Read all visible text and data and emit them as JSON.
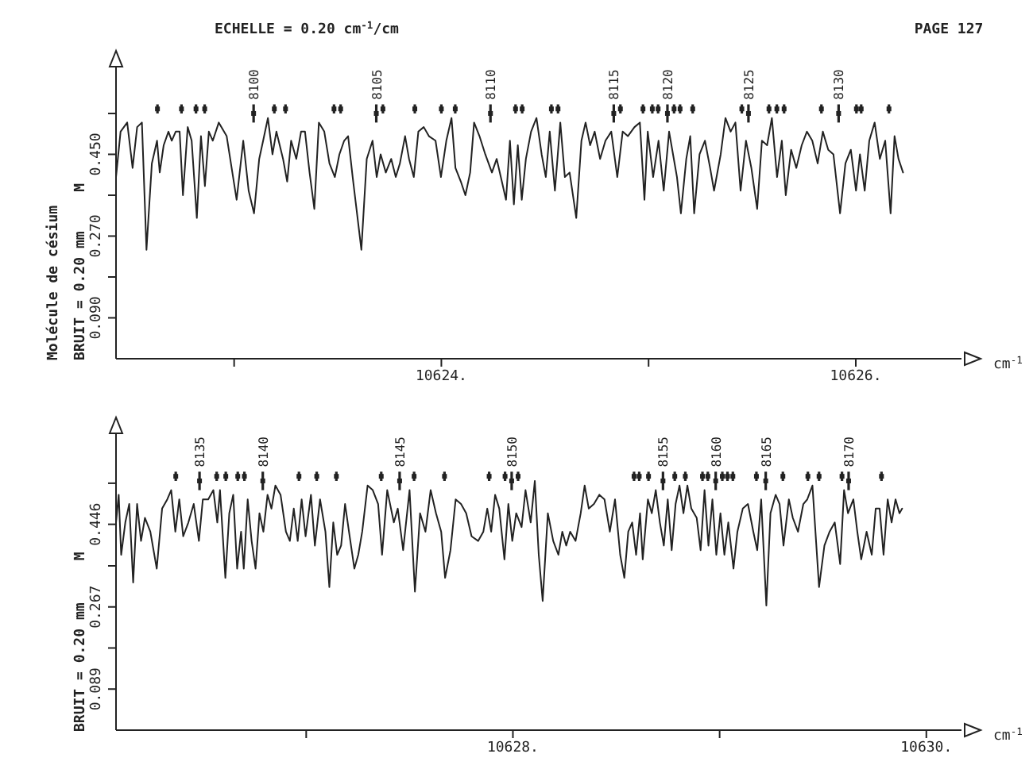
{
  "chart_data": [
    {
      "type": "line",
      "title": "ECHELLE = 0.20 cm$^{-1}$/cm",
      "xlabel": "cm$^{-1}$",
      "ylabel": "Molécule de césium",
      "xlim": [
        10622.43,
        10626.51
      ],
      "ylim": [
        0,
        0.65
      ],
      "xticks": [
        {
          "value": 10623,
          "label": null
        },
        {
          "value": 10624,
          "label": "10624."
        },
        {
          "value": 10625,
          "label": null
        },
        {
          "value": 10626,
          "label": "10626."
        }
      ],
      "yticks": [
        {
          "value": 0.09,
          "label": "0.090"
        },
        {
          "value": 0.18,
          "label": null
        },
        {
          "value": 0.27,
          "label": "0.270"
        },
        {
          "value": 0.36,
          "label": null
        },
        {
          "value": 0.45,
          "label": "0.450"
        },
        {
          "value": 0.54,
          "label": null
        }
      ],
      "marker": "none",
      "annotations": [
        "PAGE 127",
        "BRUIT = 0.20 mm",
        "M",
        {
          "text": "8100",
          "x": 10623.094,
          "y": 0.57
        },
        {
          "text": "8105",
          "x": 10623.686,
          "y": 0.57
        },
        {
          "text": "8110",
          "x": 10624.237,
          "y": 0.57
        },
        {
          "text": "8115",
          "x": 10624.832,
          "y": 0.57
        },
        {
          "text": "8120",
          "x": 10625.091,
          "y": 0.57
        },
        {
          "text": "8125",
          "x": 10625.482,
          "y": 0.57
        },
        {
          "text": "8130",
          "x": 10625.917,
          "y": 0.57
        }
      ],
      "series": [
        {
          "color": "#222222",
          "x": [
            10622.43,
            10622.452,
            10622.484,
            10622.51,
            10622.532,
            10622.555,
            10622.577,
            10622.603,
            10622.628,
            10622.641,
            10622.66,
            10622.683,
            10622.699,
            10622.718,
            10622.737,
            10622.753,
            10622.776,
            10622.795,
            10622.82,
            10622.84,
            10622.859,
            10622.878,
            10622.897,
            10622.926,
            10622.964,
            10623.012,
            10623.044,
            10623.07,
            10623.096,
            10623.121,
            10623.14,
            10623.163,
            10623.185,
            10623.204,
            10623.236,
            10623.256,
            10623.275,
            10623.3,
            10623.323,
            10623.342,
            10623.364,
            10623.387,
            10623.409,
            10623.435,
            10623.46,
            10623.486,
            10623.508,
            10623.531,
            10623.55,
            10623.572,
            10623.614,
            10623.64,
            10623.668,
            10623.688,
            10623.707,
            10623.732,
            10623.758,
            10623.78,
            10623.8,
            10623.825,
            10623.844,
            10623.867,
            10623.889,
            10623.915,
            10623.94,
            10623.972,
            10623.998,
            10624.024,
            10624.049,
            10624.068,
            10624.094,
            10624.116,
            10624.139,
            10624.158,
            10624.184,
            10624.212,
            10624.244,
            10624.267,
            10624.292,
            10624.312,
            10624.331,
            10624.35,
            10624.369,
            10624.388,
            10624.408,
            10624.433,
            10624.459,
            10624.484,
            10624.504,
            10624.523,
            10624.548,
            10624.574,
            10624.596,
            10624.619,
            10624.651,
            10624.676,
            10624.696,
            10624.718,
            10624.74,
            10624.766,
            10624.792,
            10624.82,
            10624.849,
            10624.875,
            10624.9,
            10624.932,
            10624.958,
            10624.98,
            10624.996,
            10625.022,
            10625.048,
            10625.073,
            10625.099,
            10625.118,
            10625.137,
            10625.156,
            10625.182,
            10625.201,
            10625.22,
            10625.246,
            10625.272,
            10625.297,
            10625.316,
            10625.348,
            10625.371,
            10625.396,
            10625.419,
            10625.444,
            10625.47,
            10625.496,
            10625.524,
            10625.547,
            10625.572,
            10625.595,
            10625.62,
            10625.643,
            10625.662,
            10625.688,
            10625.713,
            10625.739,
            10625.764,
            10625.79,
            10625.816,
            10625.841,
            10625.867,
            10625.892,
            10625.924,
            10625.95,
            10625.976,
            10626.001,
            10626.02,
            10626.043,
            10626.065,
            10626.091,
            10626.116,
            10626.142,
            10626.168,
            10626.187,
            10626.206,
            10626.228
          ],
          "values": [
            0.4,
            0.5,
            0.52,
            0.42,
            0.51,
            0.52,
            0.24,
            0.43,
            0.48,
            0.41,
            0.47,
            0.5,
            0.48,
            0.5,
            0.5,
            0.36,
            0.51,
            0.48,
            0.31,
            0.49,
            0.38,
            0.5,
            0.48,
            0.52,
            0.49,
            0.35,
            0.48,
            0.37,
            0.32,
            0.44,
            0.48,
            0.53,
            0.45,
            0.5,
            0.44,
            0.39,
            0.48,
            0.44,
            0.5,
            0.5,
            0.41,
            0.33,
            0.52,
            0.5,
            0.43,
            0.4,
            0.45,
            0.48,
            0.49,
            0.4,
            0.24,
            0.44,
            0.48,
            0.4,
            0.45,
            0.41,
            0.44,
            0.4,
            0.43,
            0.49,
            0.44,
            0.4,
            0.5,
            0.51,
            0.49,
            0.48,
            0.4,
            0.48,
            0.53,
            0.42,
            0.39,
            0.36,
            0.41,
            0.52,
            0.49,
            0.45,
            0.41,
            0.44,
            0.39,
            0.35,
            0.48,
            0.34,
            0.47,
            0.35,
            0.44,
            0.5,
            0.53,
            0.45,
            0.4,
            0.5,
            0.37,
            0.52,
            0.4,
            0.41,
            0.31,
            0.48,
            0.52,
            0.47,
            0.5,
            0.44,
            0.48,
            0.5,
            0.4,
            0.5,
            0.49,
            0.51,
            0.52,
            0.35,
            0.5,
            0.4,
            0.48,
            0.37,
            0.5,
            0.45,
            0.4,
            0.32,
            0.44,
            0.49,
            0.32,
            0.45,
            0.48,
            0.42,
            0.37,
            0.45,
            0.53,
            0.5,
            0.52,
            0.37,
            0.48,
            0.42,
            0.33,
            0.48,
            0.47,
            0.53,
            0.4,
            0.48,
            0.36,
            0.46,
            0.42,
            0.47,
            0.5,
            0.48,
            0.43,
            0.5,
            0.46,
            0.45,
            0.32,
            0.43,
            0.46,
            0.37,
            0.45,
            0.37,
            0.48,
            0.52,
            0.44,
            0.48,
            0.32,
            0.49,
            0.44,
            0.41
          ]
        },
        {
          "type": "scatter",
          "marker": "square",
          "color": "#222222",
          "x": [
            10622.63,
            10622.746,
            10622.816,
            10622.858,
            10623.194,
            10623.248,
            10623.482,
            10623.514,
            10623.718,
            10623.872,
            10624.0,
            10624.067,
            10624.358,
            10624.39,
            10624.531,
            10624.563,
            10624.864,
            10624.973,
            10625.018,
            10625.046,
            10625.123,
            10625.152,
            10625.213,
            10625.45,
            10625.581,
            10625.619,
            10625.654,
            10625.834,
            10626.003,
            10626.026,
            10626.16
          ],
          "values": [
            0.55,
            0.55,
            0.55,
            0.55,
            0.55,
            0.55,
            0.55,
            0.55,
            0.55,
            0.55,
            0.55,
            0.55,
            0.55,
            0.55,
            0.55,
            0.55,
            0.55,
            0.55,
            0.55,
            0.55,
            0.55,
            0.55,
            0.55,
            0.55,
            0.55,
            0.55,
            0.55,
            0.55,
            0.55,
            0.55,
            0.55
          ],
          "errors": [
            0.01,
            0.01,
            0.01,
            0.01,
            0.01,
            0.01,
            0.01,
            0.01,
            0.01,
            0.01,
            0.01,
            0.01,
            0.01,
            0.01,
            0.01,
            0.01,
            0.01,
            0.01,
            0.01,
            0.01,
            0.01,
            0.01,
            0.01,
            0.01,
            0.01,
            0.01,
            0.01,
            0.01,
            0.01,
            0.01,
            0.01
          ]
        },
        {
          "type": "scatter",
          "marker": "square",
          "color": "#222222",
          "x": [
            10623.094,
            10623.686,
            10624.237,
            10624.832,
            10625.091,
            10625.482,
            10625.917
          ],
          "values": [
            0.54,
            0.54,
            0.54,
            0.54,
            0.54,
            0.54,
            0.54
          ],
          "errors": [
            0.02,
            0.02,
            0.02,
            0.02,
            0.02,
            0.02,
            0.02
          ]
        }
      ]
    },
    {
      "type": "line",
      "xlabel": "cm$^{-1}$",
      "xlim": [
        10626.08,
        10630.17
      ],
      "ylim": [
        0,
        0.65
      ],
      "xticks": [
        {
          "value": 10627,
          "label": null
        },
        {
          "value": 10628,
          "label": "10628."
        },
        {
          "value": 10629,
          "label": null
        },
        {
          "value": 10630,
          "label": "10630."
        }
      ],
      "yticks": [
        {
          "value": 0.089,
          "label": "0.089"
        },
        {
          "value": 0.178,
          "label": null
        },
        {
          "value": 0.267,
          "label": "0.267"
        },
        {
          "value": 0.356,
          "label": null
        },
        {
          "value": 0.446,
          "label": "0.446"
        },
        {
          "value": 0.535,
          "label": null
        }
      ],
      "marker": "none",
      "annotations": [
        "BRUIT = 0.20 mm",
        "M",
        {
          "text": "8135",
          "x": 10626.484,
          "y": 0.57
        },
        {
          "text": "8140",
          "x": 10626.79,
          "y": 0.57
        },
        {
          "text": "8145",
          "x": 10627.452,
          "y": 0.57
        },
        {
          "text": "8150",
          "x": 10627.994,
          "y": 0.57
        },
        {
          "text": "8155",
          "x": 10628.726,
          "y": 0.57
        },
        {
          "text": "8160",
          "x": 10628.981,
          "y": 0.57
        },
        {
          "text": "8165",
          "x": 10629.223,
          "y": 0.57
        },
        {
          "text": "8170",
          "x": 10629.624,
          "y": 0.57
        }
      ],
      "series": [
        {
          "color": "#222222",
          "x": [
            10626.08,
            10626.093,
            10626.105,
            10626.125,
            10626.144,
            10626.163,
            10626.182,
            10626.201,
            10626.22,
            10626.246,
            10626.277,
            10626.303,
            10626.328,
            10626.347,
            10626.367,
            10626.386,
            10626.405,
            10626.43,
            10626.456,
            10626.481,
            10626.5,
            10626.526,
            10626.551,
            10626.57,
            10626.583,
            10626.609,
            10626.628,
            10626.647,
            10626.666,
            10626.685,
            10626.698,
            10626.717,
            10626.736,
            10626.755,
            10626.774,
            10626.793,
            10626.813,
            10626.832,
            10626.851,
            10626.876,
            10626.902,
            10626.921,
            10626.94,
            10626.959,
            10626.978,
            10626.997,
            10627.023,
            10627.042,
            10627.067,
            10627.093,
            10627.112,
            10627.131,
            10627.15,
            10627.169,
            10627.188,
            10627.207,
            10627.233,
            10627.252,
            10627.271,
            10627.297,
            10627.322,
            10627.348,
            10627.367,
            10627.392,
            10627.424,
            10627.443,
            10627.469,
            10627.5,
            10627.526,
            10627.551,
            10627.577,
            10627.602,
            10627.628,
            10627.653,
            10627.672,
            10627.698,
            10627.723,
            10627.749,
            10627.774,
            10627.8,
            10627.832,
            10627.857,
            10627.876,
            10627.895,
            10627.914,
            10627.934,
            10627.959,
            10627.978,
            10627.997,
            10628.016,
            10628.042,
            10628.061,
            10628.086,
            10628.106,
            10628.125,
            10628.144,
            10628.169,
            10628.195,
            10628.22,
            10628.239,
            10628.258,
            10628.277,
            10628.303,
            10628.328,
            10628.347,
            10628.367,
            10628.392,
            10628.418,
            10628.443,
            10628.469,
            10628.494,
            10628.519,
            10628.539,
            10628.558,
            10628.577,
            10628.596,
            10628.615,
            10628.628,
            10628.653,
            10628.672,
            10628.691,
            10628.711,
            10628.73,
            10628.749,
            10628.768,
            10628.787,
            10628.806,
            10628.825,
            10628.844,
            10628.863,
            10628.889,
            10628.908,
            10628.927,
            10628.946,
            10628.965,
            10628.984,
            10629.004,
            10629.023,
            10629.042,
            10629.067,
            10629.086,
            10629.112,
            10629.137,
            10629.163,
            10629.182,
            10629.201,
            10629.226,
            10629.246,
            10629.271,
            10629.29,
            10629.309,
            10629.335,
            10629.354,
            10629.379,
            10629.405,
            10629.424,
            10629.449,
            10629.481,
            10629.507,
            10629.532,
            10629.557,
            10629.583,
            10629.602,
            10629.621,
            10629.647,
            10629.666,
            10629.685,
            10629.711,
            10629.736,
            10629.755,
            10629.774,
            10629.793,
            10629.813,
            10629.832,
            10629.851,
            10629.87,
            10629.883
          ],
          "values": [
            0.45,
            0.51,
            0.38,
            0.45,
            0.49,
            0.32,
            0.49,
            0.41,
            0.46,
            0.43,
            0.35,
            0.48,
            0.5,
            0.52,
            0.43,
            0.5,
            0.42,
            0.45,
            0.49,
            0.41,
            0.5,
            0.5,
            0.52,
            0.45,
            0.52,
            0.33,
            0.47,
            0.51,
            0.35,
            0.43,
            0.35,
            0.5,
            0.41,
            0.35,
            0.47,
            0.43,
            0.51,
            0.48,
            0.53,
            0.51,
            0.43,
            0.41,
            0.48,
            0.41,
            0.5,
            0.42,
            0.51,
            0.4,
            0.5,
            0.43,
            0.31,
            0.45,
            0.38,
            0.4,
            0.49,
            0.43,
            0.35,
            0.38,
            0.43,
            0.53,
            0.52,
            0.49,
            0.38,
            0.52,
            0.45,
            0.48,
            0.39,
            0.52,
            0.3,
            0.47,
            0.43,
            0.52,
            0.47,
            0.43,
            0.33,
            0.39,
            0.5,
            0.49,
            0.47,
            0.42,
            0.41,
            0.43,
            0.48,
            0.43,
            0.51,
            0.48,
            0.37,
            0.49,
            0.41,
            0.47,
            0.44,
            0.52,
            0.45,
            0.54,
            0.38,
            0.28,
            0.47,
            0.41,
            0.38,
            0.43,
            0.4,
            0.43,
            0.41,
            0.47,
            0.53,
            0.48,
            0.49,
            0.51,
            0.5,
            0.43,
            0.5,
            0.38,
            0.33,
            0.43,
            0.45,
            0.38,
            0.47,
            0.37,
            0.5,
            0.47,
            0.52,
            0.45,
            0.4,
            0.5,
            0.39,
            0.49,
            0.53,
            0.47,
            0.53,
            0.48,
            0.46,
            0.39,
            0.52,
            0.4,
            0.5,
            0.38,
            0.47,
            0.38,
            0.45,
            0.35,
            0.43,
            0.48,
            0.49,
            0.43,
            0.39,
            0.5,
            0.27,
            0.47,
            0.51,
            0.49,
            0.4,
            0.5,
            0.46,
            0.43,
            0.49,
            0.5,
            0.53,
            0.31,
            0.4,
            0.43,
            0.45,
            0.36,
            0.52,
            0.47,
            0.5,
            0.43,
            0.37,
            0.43,
            0.38,
            0.48,
            0.48,
            0.38,
            0.5,
            0.45,
            0.5,
            0.47,
            0.48
          ]
        },
        {
          "type": "scatter",
          "marker": "square",
          "color": "#222222",
          "x": [
            10626.369,
            10626.567,
            10626.611,
            10626.669,
            10626.701,
            10626.965,
            10627.051,
            10627.146,
            10627.363,
            10627.522,
            10627.669,
            10627.885,
            10627.962,
            10628.025,
            10628.586,
            10628.611,
            10628.656,
            10628.783,
            10628.834,
            10628.917,
            10628.943,
            10629.013,
            10629.038,
            10629.064,
            10629.178,
            10629.306,
            10629.427,
            10629.481,
            10629.592,
            10629.783
          ],
          "values": [
            0.55,
            0.55,
            0.55,
            0.55,
            0.55,
            0.55,
            0.55,
            0.55,
            0.55,
            0.55,
            0.55,
            0.55,
            0.55,
            0.55,
            0.55,
            0.55,
            0.55,
            0.55,
            0.55,
            0.55,
            0.55,
            0.55,
            0.55,
            0.55,
            0.55,
            0.55,
            0.55,
            0.55,
            0.55,
            0.55
          ],
          "errors": [
            0.01,
            0.01,
            0.01,
            0.01,
            0.01,
            0.01,
            0.01,
            0.01,
            0.01,
            0.01,
            0.01,
            0.01,
            0.01,
            0.01,
            0.01,
            0.01,
            0.01,
            0.01,
            0.01,
            0.01,
            0.01,
            0.01,
            0.01,
            0.01,
            0.01,
            0.01,
            0.01,
            0.01,
            0.01,
            0.01
          ]
        },
        {
          "type": "scatter",
          "marker": "square",
          "color": "#222222",
          "x": [
            10626.484,
            10626.79,
            10627.452,
            10627.994,
            10628.726,
            10628.981,
            10629.223,
            10629.624
          ],
          "values": [
            0.54,
            0.54,
            0.54,
            0.54,
            0.54,
            0.54,
            0.54,
            0.54
          ],
          "errors": [
            0.02,
            0.02,
            0.02,
            0.02,
            0.02,
            0.02,
            0.02,
            0.02
          ]
        }
      ]
    }
  ]
}
